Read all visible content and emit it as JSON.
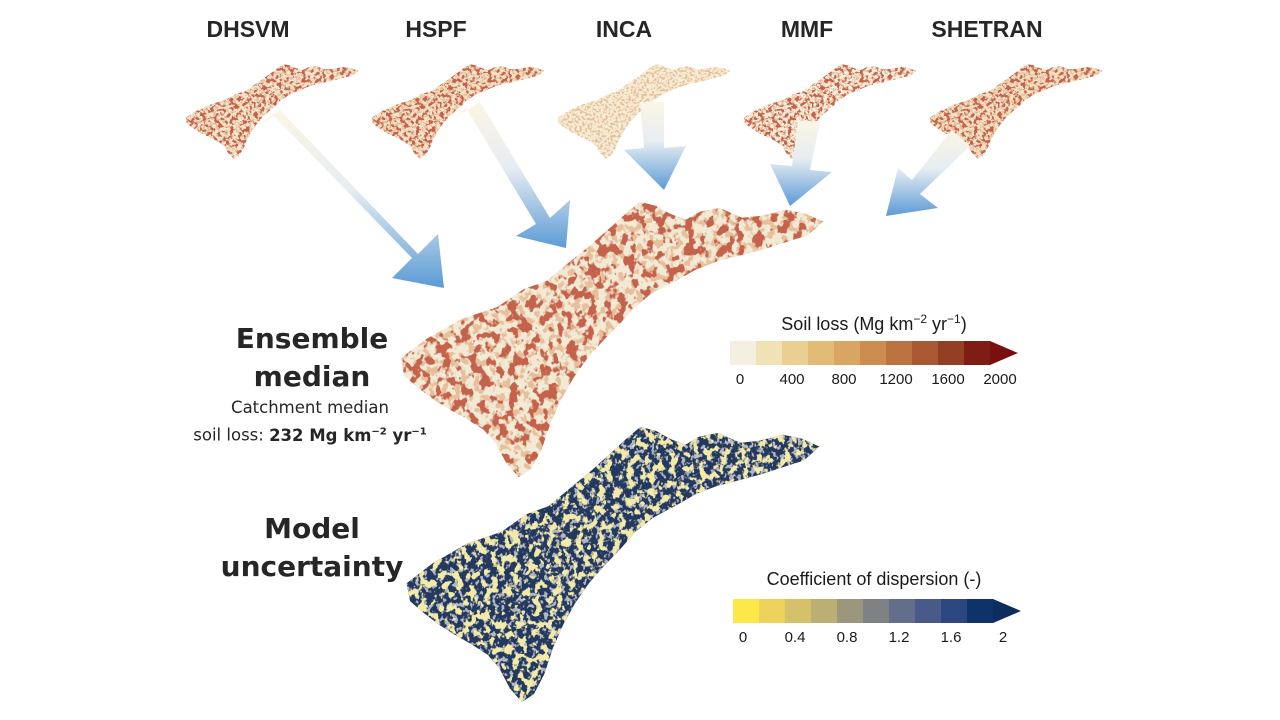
{
  "models": [
    "DHSVM",
    "HSPF",
    "INCA",
    "MMF",
    "SHETRAN"
  ],
  "ensemble": {
    "title_line1": "Ensemble",
    "title_line2": "median",
    "caption_line1": "Catchment median",
    "caption_prefix": "soil loss: ",
    "caption_value": "232 Mg km",
    "caption_unit_mid": " yr",
    "exp_km": "−2",
    "exp_yr": "−1"
  },
  "uncertainty": {
    "title_line1": "Model",
    "title_line2": "uncertainty"
  },
  "soil_loss_colorbar": {
    "title_main": "Soil loss (Mg km",
    "title_mid": " yr",
    "title_end": ")",
    "exp_km": "−2",
    "exp_yr": "−1",
    "ticks": [
      "0",
      "400",
      "800",
      "1200",
      "1600",
      "2000"
    ],
    "colors": [
      "#f4efe0",
      "#efe2b4",
      "#e9cf91",
      "#e2bb79",
      "#d9a563",
      "#cd8c50",
      "#bd7242",
      "#a95a34",
      "#933f24",
      "#7f1c14"
    ],
    "extend_color": "#7a0f0f"
  },
  "dispersion_colorbar": {
    "title": "Coefficient of dispersion (-)",
    "ticks": [
      "0",
      "0.4",
      "0.8",
      "1.2",
      "1.6",
      "2"
    ],
    "colors": [
      "#fde84a",
      "#ecd25b",
      "#d4c16a",
      "#bbaf74",
      "#9c967c",
      "#7f8284",
      "#636e8b",
      "#485b88",
      "#2c467f",
      "#0f3369"
    ],
    "extend_color": "#0d2d60"
  },
  "palette": {
    "arrow_start": "#fbf5e4",
    "arrow_end": "#5b9bd5",
    "soil_dark": "#8b1a10",
    "dispersion_dark": "#1f3a66"
  }
}
